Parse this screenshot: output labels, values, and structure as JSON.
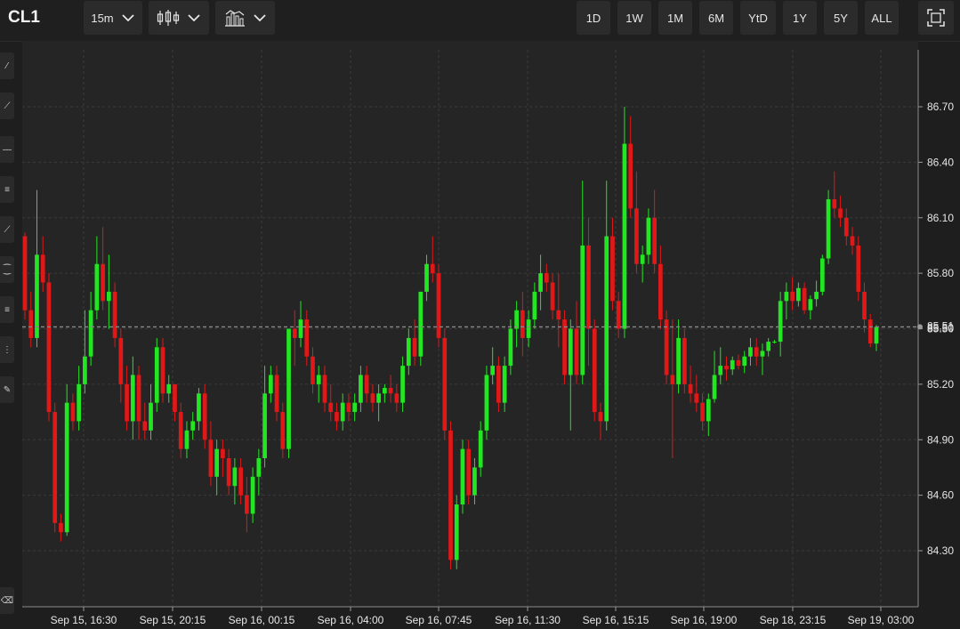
{
  "header": {
    "symbol": "CL1",
    "interval": "15m",
    "chart_type_icon": "candlestick-icon",
    "indicators_icon": "indicators-icon",
    "fullscreen_icon": "fullscreen-icon",
    "ranges": [
      "1D",
      "1W",
      "1M",
      "6M",
      "YtD",
      "1Y",
      "5Y",
      "ALL"
    ]
  },
  "sidebar": {
    "tools": [
      "pencil-icon",
      "trend-line-icon",
      "horizontal-line-icon",
      "fib-retracement-icon",
      "pitchfork-icon",
      "arc-icon",
      "fib-timezone-icon",
      "fib-fan-icon",
      "brush-icon",
      "eraser-icon"
    ]
  },
  "colors": {
    "background": "#252525",
    "up": "#22e622",
    "down": "#e01818",
    "grid": "#3a3a3a",
    "last_price_line": "#8a8a8a"
  },
  "chart_data": {
    "type": "candlestick",
    "symbol": "CL1",
    "interval": "15m",
    "ylim": [
      84.0,
      87.0
    ],
    "y_ticks": [
      "84.30",
      "84.60",
      "84.90",
      "85.20",
      "85.50",
      "85.80",
      "86.10",
      "86.40",
      "86.70"
    ],
    "x_tick_labels": [
      "Sep 15, 16:30",
      "Sep 15, 20:15",
      "Sep 16, 00:15",
      "Sep 16, 04:00",
      "Sep 16, 07:45",
      "Sep 16, 11:30",
      "Sep 16, 15:15",
      "Sep 16, 19:00",
      "Sep 18, 23:15",
      "Sep 19, 03:00"
    ],
    "last_price_labels": [
      "85.51",
      "85.50"
    ],
    "last_price": 85.51,
    "candles": [
      [
        86.0,
        86.02,
        85.55,
        85.6
      ],
      [
        85.6,
        85.7,
        85.4,
        85.45
      ],
      [
        85.45,
        86.25,
        85.4,
        85.9
      ],
      [
        85.9,
        86.0,
        85.7,
        85.75
      ],
      [
        85.75,
        85.8,
        85.0,
        85.05
      ],
      [
        85.05,
        85.1,
        84.4,
        84.45
      ],
      [
        84.45,
        84.5,
        84.35,
        84.4
      ],
      [
        84.4,
        85.2,
        84.38,
        85.1
      ],
      [
        85.1,
        85.15,
        84.95,
        85.0
      ],
      [
        85.0,
        85.3,
        84.95,
        85.2
      ],
      [
        85.2,
        85.6,
        85.15,
        85.35
      ],
      [
        85.35,
        85.7,
        85.3,
        85.6
      ],
      [
        85.6,
        86.0,
        85.55,
        85.85
      ],
      [
        85.85,
        86.05,
        85.6,
        85.65
      ],
      [
        85.65,
        85.9,
        85.5,
        85.7
      ],
      [
        85.7,
        85.75,
        85.4,
        85.45
      ],
      [
        85.45,
        85.5,
        85.1,
        85.2
      ],
      [
        85.2,
        85.3,
        84.95,
        85.0
      ],
      [
        85.0,
        85.35,
        84.9,
        85.25
      ],
      [
        85.25,
        85.3,
        84.9,
        85.0
      ],
      [
        85.0,
        85.1,
        84.9,
        84.95
      ],
      [
        84.95,
        85.2,
        84.9,
        85.1
      ],
      [
        85.1,
        85.45,
        85.05,
        85.4
      ],
      [
        85.4,
        85.45,
        85.1,
        85.15
      ],
      [
        85.15,
        85.25,
        85.1,
        85.2
      ],
      [
        85.2,
        85.2,
        85.0,
        85.05
      ],
      [
        85.05,
        85.1,
        84.8,
        84.85
      ],
      [
        84.85,
        85.0,
        84.8,
        84.95
      ],
      [
        84.95,
        85.05,
        84.9,
        85.0
      ],
      [
        85.0,
        85.18,
        84.95,
        85.15
      ],
      [
        85.15,
        85.2,
        84.85,
        84.9
      ],
      [
        84.9,
        85.0,
        84.65,
        84.7
      ],
      [
        84.7,
        84.9,
        84.6,
        84.85
      ],
      [
        84.85,
        84.9,
        84.7,
        84.8
      ],
      [
        84.8,
        84.85,
        84.6,
        84.65
      ],
      [
        84.65,
        84.8,
        84.55,
        84.75
      ],
      [
        84.75,
        84.8,
        84.55,
        84.6
      ],
      [
        84.6,
        84.7,
        84.4,
        84.5
      ],
      [
        84.5,
        84.75,
        84.45,
        84.7
      ],
      [
        84.7,
        84.85,
        84.6,
        84.8
      ],
      [
        84.8,
        85.3,
        84.75,
        85.15
      ],
      [
        85.15,
        85.3,
        85.1,
        85.25
      ],
      [
        85.25,
        85.3,
        85.0,
        85.05
      ],
      [
        85.05,
        85.1,
        84.8,
        84.85
      ],
      [
        84.85,
        85.5,
        84.8,
        85.5
      ],
      [
        85.5,
        85.6,
        85.3,
        85.45
      ],
      [
        85.45,
        85.65,
        85.4,
        85.55
      ],
      [
        85.55,
        85.6,
        85.3,
        85.35
      ],
      [
        85.35,
        85.4,
        85.15,
        85.2
      ],
      [
        85.2,
        85.3,
        85.1,
        85.25
      ],
      [
        85.25,
        85.3,
        85.05,
        85.1
      ],
      [
        85.1,
        85.2,
        85.0,
        85.05
      ],
      [
        85.05,
        85.1,
        84.95,
        85.0
      ],
      [
        85.0,
        85.15,
        84.95,
        85.1
      ],
      [
        85.1,
        85.15,
        85.0,
        85.05
      ],
      [
        85.05,
        85.15,
        85.0,
        85.1
      ],
      [
        85.1,
        85.3,
        85.05,
        85.25
      ],
      [
        85.25,
        85.3,
        85.1,
        85.15
      ],
      [
        85.15,
        85.2,
        85.05,
        85.1
      ],
      [
        85.1,
        85.2,
        85.0,
        85.15
      ],
      [
        85.15,
        85.2,
        85.1,
        85.18
      ],
      [
        85.18,
        85.25,
        85.1,
        85.15
      ],
      [
        85.15,
        85.2,
        85.05,
        85.1
      ],
      [
        85.1,
        85.35,
        85.05,
        85.3
      ],
      [
        85.3,
        85.5,
        85.25,
        85.45
      ],
      [
        85.45,
        85.55,
        85.3,
        85.35
      ],
      [
        85.35,
        85.7,
        85.3,
        85.7
      ],
      [
        85.7,
        85.9,
        85.65,
        85.85
      ],
      [
        85.85,
        86.0,
        85.75,
        85.8
      ],
      [
        85.8,
        85.85,
        85.4,
        85.45
      ],
      [
        85.45,
        85.5,
        84.9,
        84.95
      ],
      [
        84.95,
        85.0,
        84.2,
        84.25
      ],
      [
        84.25,
        84.6,
        84.2,
        84.55
      ],
      [
        84.55,
        84.9,
        84.5,
        84.85
      ],
      [
        84.85,
        84.9,
        84.55,
        84.6
      ],
      [
        84.6,
        84.8,
        84.55,
        84.75
      ],
      [
        84.75,
        85.0,
        84.7,
        84.95
      ],
      [
        84.95,
        85.3,
        84.9,
        85.25
      ],
      [
        85.25,
        85.4,
        85.2,
        85.3
      ],
      [
        85.3,
        85.35,
        85.05,
        85.1
      ],
      [
        85.1,
        85.35,
        85.05,
        85.3
      ],
      [
        85.3,
        85.55,
        85.25,
        85.5
      ],
      [
        85.5,
        85.65,
        85.4,
        85.6
      ],
      [
        85.6,
        85.7,
        85.35,
        85.45
      ],
      [
        85.45,
        85.6,
        85.4,
        85.55
      ],
      [
        85.55,
        85.75,
        85.5,
        85.7
      ],
      [
        85.7,
        85.9,
        85.6,
        85.8
      ],
      [
        85.8,
        85.85,
        85.7,
        85.75
      ],
      [
        85.75,
        85.8,
        85.55,
        85.6
      ],
      [
        85.6,
        85.8,
        85.4,
        85.55
      ],
      [
        85.55,
        85.6,
        85.2,
        85.25
      ],
      [
        85.25,
        85.55,
        84.95,
        85.5
      ],
      [
        85.5,
        85.65,
        85.2,
        85.25
      ],
      [
        85.25,
        86.3,
        85.2,
        85.95
      ],
      [
        85.95,
        86.1,
        85.3,
        85.5
      ],
      [
        85.5,
        85.55,
        85.0,
        85.05
      ],
      [
        85.05,
        85.1,
        84.9,
        85.0
      ],
      [
        85.0,
        86.3,
        84.95,
        86.0
      ],
      [
        86.0,
        86.1,
        85.6,
        85.65
      ],
      [
        85.65,
        85.7,
        85.45,
        85.5
      ],
      [
        85.5,
        86.7,
        85.45,
        86.5
      ],
      [
        86.5,
        86.65,
        86.1,
        86.15
      ],
      [
        86.15,
        86.35,
        85.8,
        85.85
      ],
      [
        85.85,
        85.95,
        85.75,
        85.9
      ],
      [
        85.9,
        86.15,
        85.85,
        86.1
      ],
      [
        86.1,
        86.25,
        85.8,
        85.85
      ],
      [
        85.85,
        85.95,
        85.5,
        85.55
      ],
      [
        85.55,
        85.6,
        85.2,
        85.25
      ],
      [
        85.25,
        85.55,
        84.8,
        85.2
      ],
      [
        85.2,
        85.55,
        85.15,
        85.45
      ],
      [
        85.45,
        85.5,
        85.15,
        85.2
      ],
      [
        85.2,
        85.3,
        85.1,
        85.15
      ],
      [
        85.15,
        85.25,
        85.05,
        85.1
      ],
      [
        85.1,
        85.15,
        84.95,
        85.0
      ],
      [
        85.0,
        85.15,
        84.92,
        85.12
      ],
      [
        85.12,
        85.38,
        85.1,
        85.25
      ],
      [
        85.25,
        85.4,
        85.2,
        85.3
      ],
      [
        85.3,
        85.35,
        85.22,
        85.28
      ],
      [
        85.28,
        85.35,
        85.25,
        85.33
      ],
      [
        85.33,
        85.36,
        85.28,
        85.3
      ],
      [
        85.3,
        85.38,
        85.26,
        85.35
      ],
      [
        85.35,
        85.45,
        85.3,
        85.4
      ],
      [
        85.4,
        85.45,
        85.3,
        85.35
      ],
      [
        85.35,
        85.42,
        85.25,
        85.38
      ],
      [
        85.38,
        85.45,
        85.35,
        85.43
      ],
      [
        85.43,
        85.44,
        85.42,
        85.43
      ],
      [
        85.43,
        85.7,
        85.35,
        85.65
      ],
      [
        85.65,
        85.75,
        85.55,
        85.7
      ],
      [
        85.7,
        85.78,
        85.6,
        85.65
      ],
      [
        85.65,
        85.75,
        85.62,
        85.72
      ],
      [
        85.72,
        85.75,
        85.58,
        85.6
      ],
      [
        85.6,
        85.68,
        85.55,
        85.66
      ],
      [
        85.66,
        85.76,
        85.62,
        85.7
      ],
      [
        85.7,
        85.9,
        85.68,
        85.88
      ],
      [
        85.88,
        86.25,
        85.85,
        86.2
      ],
      [
        86.2,
        86.35,
        86.1,
        86.15
      ],
      [
        86.15,
        86.22,
        86.05,
        86.1
      ],
      [
        86.1,
        86.15,
        85.95,
        86.0
      ],
      [
        86.0,
        86.05,
        85.9,
        85.95
      ],
      [
        85.95,
        86.0,
        85.65,
        85.7
      ],
      [
        85.7,
        85.75,
        85.48,
        85.55
      ],
      [
        85.55,
        85.58,
        85.4,
        85.42
      ],
      [
        85.42,
        85.52,
        85.38,
        85.51
      ]
    ]
  }
}
